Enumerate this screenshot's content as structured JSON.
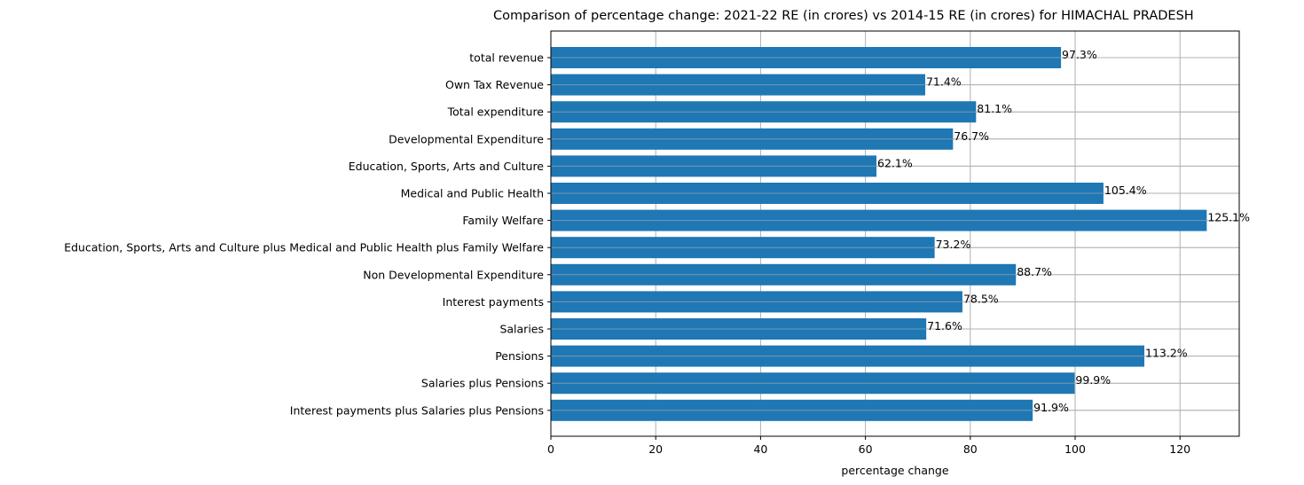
{
  "chart_data": {
    "type": "bar",
    "orientation": "horizontal",
    "title": "Comparison of percentage change: 2021-22 RE (in crores) vs 2014-15 RE (in crores) for HIMACHAL PRADESH",
    "xlabel": "percentage change",
    "ylabel": "",
    "xlim": [
      0,
      131.3
    ],
    "xticks": [
      0,
      20,
      40,
      60,
      80,
      100,
      120
    ],
    "grid": true,
    "bar_color": "#1f77b4",
    "categories": [
      "total revenue",
      "Own Tax Revenue",
      "Total expenditure",
      "Developmental Expenditure",
      "Education, Sports, Arts and Culture",
      "Medical and Public Health",
      "Family Welfare",
      "Education, Sports, Arts and Culture plus Medical and Public Health plus Family Welfare",
      "Non Developmental Expenditure",
      "Interest payments",
      "Salaries",
      "Pensions",
      "Salaries plus Pensions",
      "Interest payments plus Salaries plus Pensions"
    ],
    "values": [
      97.3,
      71.4,
      81.1,
      76.7,
      62.1,
      105.4,
      125.1,
      73.2,
      88.7,
      78.5,
      71.6,
      113.2,
      99.9,
      91.9
    ],
    "data_labels": [
      "97.3%",
      "71.4%",
      "81.1%",
      "76.7%",
      "62.1%",
      "105.4%",
      "125.1%",
      "73.2%",
      "88.7%",
      "78.5%",
      "71.6%",
      "113.2%",
      "99.9%",
      "91.9%"
    ]
  }
}
